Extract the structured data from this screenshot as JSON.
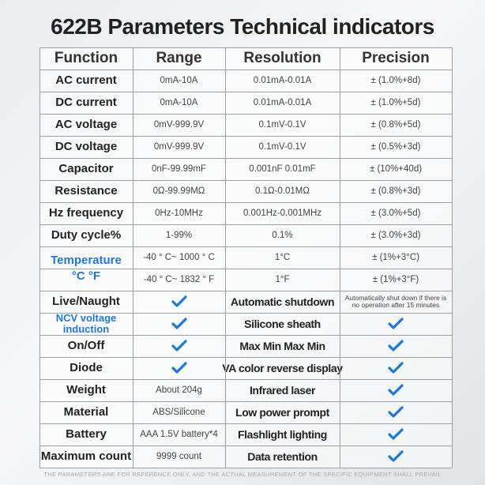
{
  "title": "622B Parameters Technical indicators",
  "table": {
    "header": [
      "Function",
      "Range",
      "Resolution",
      "Precision"
    ],
    "rows": [
      [
        "AC current",
        "0mA-10A",
        "0.01mA-0.01A",
        "± (1.0%+8d)"
      ],
      [
        "DC current",
        "0mA-10A",
        "0.01mA-0.01A",
        "± (1.0%+5d)"
      ],
      [
        "AC voltage",
        "0mV-999.9V",
        "0.1mV-0.1V",
        "± (0.8%+5d)"
      ],
      [
        "DC voltage",
        "0mV-999.9V",
        "0.1mV-0.1V",
        "± (0.5%+3d)"
      ],
      [
        "Capacitor",
        "0nF-99.99mF",
        "0.001nF 0.01mF",
        "± (10%+40d)"
      ],
      [
        "Resistance",
        "0Ω-99.99MΩ",
        "0.1Ω-0.01MΩ",
        "± (0.8%+3d)"
      ],
      [
        "Hz frequency",
        "0Hz-10MHz",
        "0.001Hz-0.001MHz",
        "± (3.0%+5d)"
      ],
      [
        "Duty cycle%",
        "1-99%",
        "0.1%",
        "± (3.0%+3d)"
      ]
    ]
  },
  "temperature": {
    "label": "Temperature",
    "units": "°C °F",
    "rows": [
      [
        "-40 ° C~ 1000 ° C",
        "1°C",
        "± (1%+3°C)"
      ],
      [
        "-40 ° C~ 1832 ° F",
        "1°F",
        "± (1%+3°F)"
      ]
    ]
  },
  "features": [
    {
      "left": {
        "label": "Live/Naught"
      },
      "right": {
        "label": "Automatic shutdown",
        "value": "Automatically shut down if there is no operation after 15 minutes"
      }
    },
    {
      "left": {
        "label": "NCV voltage induction"
      },
      "right": {
        "label": "Silicone sheath"
      }
    },
    {
      "left": {
        "label": "On/Off"
      },
      "right": {
        "label": "Max Min Max Min"
      }
    },
    {
      "left": {
        "label": "Diode"
      },
      "right": {
        "label": "VA color reverse display"
      }
    },
    {
      "left": {
        "label": "Weight",
        "value": "About 204g"
      },
      "right": {
        "label": "Infrared laser"
      }
    },
    {
      "left": {
        "label": "Material",
        "value": "ABS/Silicone"
      },
      "right": {
        "label": "Low power prompt"
      }
    },
    {
      "left": {
        "label": "Battery",
        "value": "AAA 1.5V battery*4"
      },
      "right": {
        "label": "Flashlight lighting"
      }
    },
    {
      "left": {
        "label": "Maximum count",
        "value": "9999 count"
      },
      "right": {
        "label": "Data retention"
      }
    }
  ],
  "footer": "THE PARAMETERS ARE FOR REFERENCE ONLY, AND THE ACTUAL MEASUREMENT OF THE SPECIFIC EQUIPMENT SHALL PREVAIL"
}
